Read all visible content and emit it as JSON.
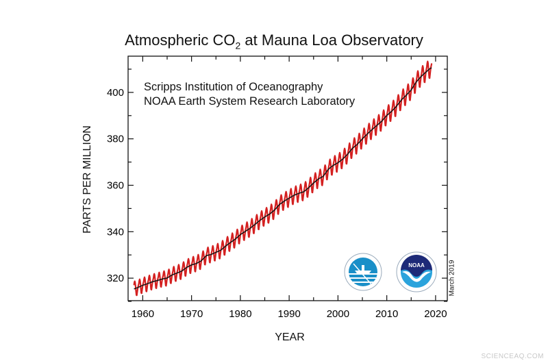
{
  "chart_data": {
    "type": "line",
    "title": "Atmospheric CO",
    "title_subscript": "2",
    "title_suffix": " at Mauna Loa Observatory",
    "annotations": [
      "Scripps Institution of Oceanography",
      "NOAA Earth System Research Laboratory"
    ],
    "date_note": "March 2019",
    "xlabel": "YEAR",
    "ylabel": "PARTS PER MILLION",
    "xlim": [
      1957,
      2022.4
    ],
    "ylim": [
      310.3,
      415.6
    ],
    "xticks": [
      1960,
      1970,
      1980,
      1990,
      2000,
      2010,
      2020
    ],
    "yticks": [
      320,
      340,
      360,
      380,
      400
    ],
    "grid": false,
    "legend": "none",
    "series": [
      {
        "kind": "monthly-seasonal",
        "color": "#d42020",
        "seasonal_offsets_jan_to_dec": [
          0.2,
          0.9,
          1.6,
          2.7,
          3.2,
          2.5,
          0.9,
          -1.2,
          -3.0,
          -3.2,
          -2.0,
          -0.8
        ],
        "start": 1958.2,
        "end": 2019.2
      },
      {
        "kind": "trend",
        "color": "#111111",
        "x": [
          1958,
          1959,
          1960,
          1961,
          1962,
          1963,
          1964,
          1965,
          1966,
          1967,
          1968,
          1969,
          1970,
          1971,
          1972,
          1973,
          1974,
          1975,
          1976,
          1977,
          1978,
          1979,
          1980,
          1981,
          1982,
          1983,
          1984,
          1985,
          1986,
          1987,
          1988,
          1989,
          1990,
          1991,
          1992,
          1993,
          1994,
          1995,
          1996,
          1997,
          1998,
          1999,
          2000,
          2001,
          2002,
          2003,
          2004,
          2005,
          2006,
          2007,
          2008,
          2009,
          2010,
          2011,
          2012,
          2013,
          2014,
          2015,
          2016,
          2017,
          2018,
          2019
        ],
        "y": [
          315.2,
          315.97,
          316.91,
          317.64,
          318.45,
          318.99,
          319.62,
          320.04,
          321.37,
          322.18,
          323.05,
          324.62,
          325.68,
          326.32,
          327.46,
          329.68,
          330.19,
          331.12,
          332.03,
          333.84,
          335.41,
          336.84,
          338.76,
          340.12,
          341.48,
          343.15,
          344.87,
          346.35,
          347.61,
          349.31,
          351.69,
          353.2,
          354.45,
          355.7,
          356.54,
          357.21,
          358.96,
          360.97,
          362.74,
          363.88,
          366.84,
          368.54,
          369.71,
          371.32,
          373.45,
          375.98,
          377.7,
          379.98,
          382.09,
          384.02,
          385.83,
          387.64,
          390.1,
          391.85,
          394.06,
          396.74,
          398.81,
          401.01,
          404.41,
          406.76,
          408.72,
          410.5
        ]
      }
    ]
  },
  "logos": {
    "scripps": {
      "name": "Scripps Institution of Oceanography seal",
      "colors": [
        "#1a8fc8",
        "#ffffff"
      ]
    },
    "noaa": {
      "name": "NOAA",
      "text": "NOAA",
      "colors": [
        "#1d2a78",
        "#2aa3dc"
      ]
    }
  },
  "watermark": "SCIENCEAQ.COM"
}
